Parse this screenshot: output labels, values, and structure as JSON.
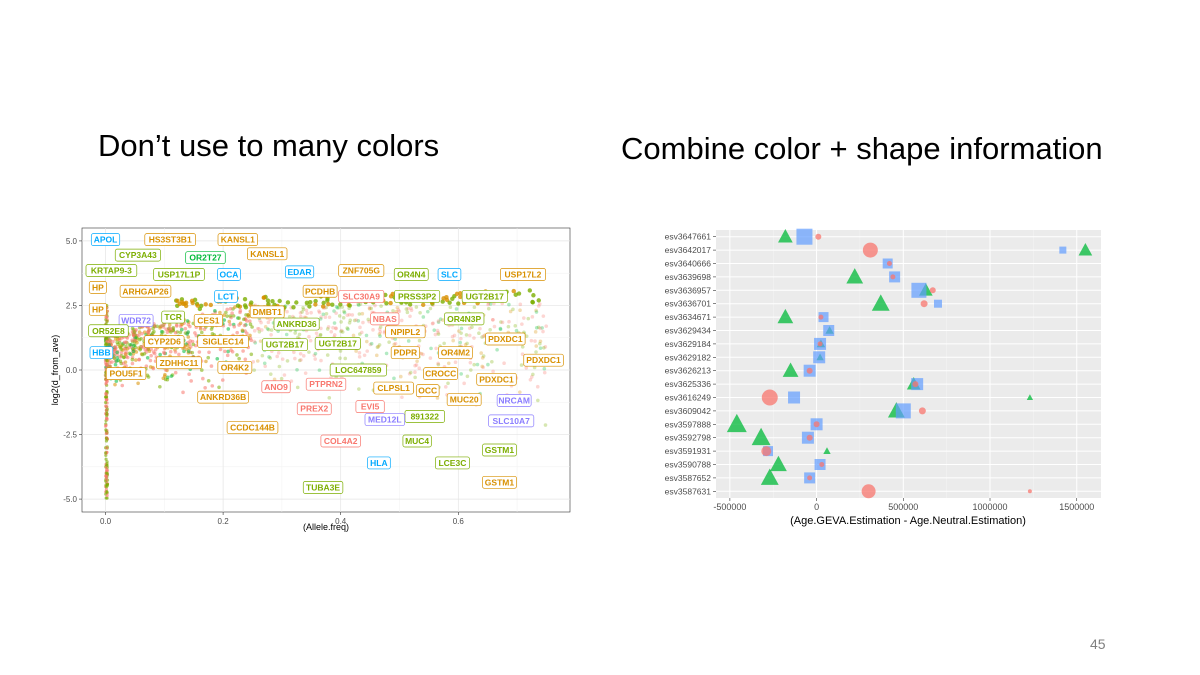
{
  "slide": {
    "left_title": "Don’t use to many colors",
    "right_title": "Combine color + shape information",
    "page_number": "45"
  },
  "colors": {
    "red": "#F8766D",
    "green": "#00BA38",
    "blue": "#619CFF",
    "olive": "#7CAE00",
    "orange": "#D89000",
    "sky": "#00A9FF",
    "purple": "#8A7CFF",
    "panel_bg": "#EBEBEB"
  },
  "chart_data": [
    {
      "type": "scatter",
      "title": "",
      "xlabel": "(Allele.freq)",
      "ylabel": "log2(d_from_ave)",
      "xlim": [
        -0.04,
        0.79
      ],
      "ylim": [
        -5.5,
        5.5
      ],
      "x_ticks": [
        "0.0",
        "0.2",
        "0.4",
        "0.6"
      ],
      "y_ticks": [
        "5.0",
        "2.5",
        "0.0",
        "-2.5",
        "-5.0"
      ],
      "background": "white with grey grid",
      "labels": [
        {
          "text": "APOL",
          "color": "sky",
          "x": 0.0,
          "y": 5.05
        },
        {
          "text": "HS3ST3B1",
          "color": "orange",
          "x": 0.11,
          "y": 5.05
        },
        {
          "text": "KANSL1",
          "color": "orange",
          "x": 0.225,
          "y": 5.05
        },
        {
          "text": "CYP3A43",
          "color": "olive",
          "x": 0.055,
          "y": 4.45
        },
        {
          "text": "KANSL1",
          "color": "orange",
          "x": 0.275,
          "y": 4.5
        },
        {
          "text": "OR2T27",
          "color": "green",
          "x": 0.17,
          "y": 4.35
        },
        {
          "text": "KRTAP9-3",
          "color": "olive",
          "x": 0.01,
          "y": 3.85
        },
        {
          "text": "USP17L1P",
          "color": "olive",
          "x": 0.125,
          "y": 3.7
        },
        {
          "text": "OCA",
          "color": "sky",
          "x": 0.21,
          "y": 3.7
        },
        {
          "text": "EDAR",
          "color": "sky",
          "x": 0.33,
          "y": 3.8
        },
        {
          "text": "ZNF705G",
          "color": "orange",
          "x": 0.435,
          "y": 3.85
        },
        {
          "text": "OR4N4",
          "color": "olive",
          "x": 0.52,
          "y": 3.7
        },
        {
          "text": "SLC",
          "color": "sky",
          "x": 0.585,
          "y": 3.7
        },
        {
          "text": "USP17L2",
          "color": "orange",
          "x": 0.71,
          "y": 3.7
        },
        {
          "text": "HP",
          "color": "orange",
          "x": -0.013,
          "y": 3.2
        },
        {
          "text": "ARHGAP26",
          "color": "orange",
          "x": 0.068,
          "y": 3.05
        },
        {
          "text": "LCT",
          "color": "sky",
          "x": 0.205,
          "y": 2.85
        },
        {
          "text": "PCDHB",
          "color": "orange",
          "x": 0.365,
          "y": 3.05
        },
        {
          "text": "SLC30A9",
          "color": "red",
          "x": 0.435,
          "y": 2.85
        },
        {
          "text": "PRSS3P2",
          "color": "olive",
          "x": 0.53,
          "y": 2.85
        },
        {
          "text": "UGT2B17",
          "color": "olive",
          "x": 0.645,
          "y": 2.85
        },
        {
          "text": "HP",
          "color": "orange",
          "x": -0.013,
          "y": 2.35
        },
        {
          "text": "DMBT1",
          "color": "orange",
          "x": 0.275,
          "y": 2.25
        },
        {
          "text": "TCR",
          "color": "olive",
          "x": 0.115,
          "y": 2.05
        },
        {
          "text": "WDR72",
          "color": "purple",
          "x": 0.052,
          "y": 1.92
        },
        {
          "text": "CES1",
          "color": "orange",
          "x": 0.175,
          "y": 1.92
        },
        {
          "text": "NBAS",
          "color": "red",
          "x": 0.475,
          "y": 1.98
        },
        {
          "text": "OR4N3P",
          "color": "olive",
          "x": 0.61,
          "y": 1.98
        },
        {
          "text": "ANKRD36",
          "color": "olive",
          "x": 0.325,
          "y": 1.78
        },
        {
          "text": "OR52E8",
          "color": "olive",
          "x": 0.005,
          "y": 1.52
        },
        {
          "text": "NPIPL2",
          "color": "orange",
          "x": 0.51,
          "y": 1.48
        },
        {
          "text": "CYP2D6",
          "color": "orange",
          "x": 0.1,
          "y": 1.1
        },
        {
          "text": "SIGLEC14",
          "color": "orange",
          "x": 0.2,
          "y": 1.1
        },
        {
          "text": "UGT2B17",
          "color": "olive",
          "x": 0.305,
          "y": 0.98
        },
        {
          "text": "UGT2B17",
          "color": "olive",
          "x": 0.395,
          "y": 1.03
        },
        {
          "text": "PDXDC1",
          "color": "orange",
          "x": 0.68,
          "y": 1.2
        },
        {
          "text": "HBB",
          "color": "sky",
          "x": -0.007,
          "y": 0.67
        },
        {
          "text": "PDPR",
          "color": "orange",
          "x": 0.51,
          "y": 0.67
        },
        {
          "text": "OR4M2",
          "color": "orange",
          "x": 0.595,
          "y": 0.67
        },
        {
          "text": "PDXDC1",
          "color": "orange",
          "x": 0.745,
          "y": 0.38
        },
        {
          "text": "ZDHHC11",
          "color": "orange",
          "x": 0.125,
          "y": 0.28
        },
        {
          "text": "OR4K2",
          "color": "orange",
          "x": 0.22,
          "y": 0.1
        },
        {
          "text": "LOC647859",
          "color": "olive",
          "x": 0.43,
          "y": 0.0
        },
        {
          "text": "CROCC",
          "color": "orange",
          "x": 0.57,
          "y": -0.14
        },
        {
          "text": "POU5F1",
          "color": "orange",
          "x": 0.035,
          "y": -0.14
        },
        {
          "text": "PDXDC1",
          "color": "orange",
          "x": 0.665,
          "y": -0.36
        },
        {
          "text": "PTPRN2",
          "color": "red",
          "x": 0.375,
          "y": -0.55
        },
        {
          "text": "ANO9",
          "color": "red",
          "x": 0.29,
          "y": -0.65
        },
        {
          "text": "CLPSL1",
          "color": "orange",
          "x": 0.49,
          "y": -0.7
        },
        {
          "text": "OCC",
          "color": "orange",
          "x": 0.548,
          "y": -0.8
        },
        {
          "text": "ANKRD36B",
          "color": "orange",
          "x": 0.2,
          "y": -1.05
        },
        {
          "text": "MUC20",
          "color": "orange",
          "x": 0.61,
          "y": -1.15
        },
        {
          "text": "NRCAM",
          "color": "purple",
          "x": 0.695,
          "y": -1.18
        },
        {
          "text": "EVI5",
          "color": "red",
          "x": 0.45,
          "y": -1.42
        },
        {
          "text": "PREX2",
          "color": "red",
          "x": 0.355,
          "y": -1.5
        },
        {
          "text": "891322",
          "color": "olive",
          "x": 0.543,
          "y": -1.8
        },
        {
          "text": "MED12L",
          "color": "purple",
          "x": 0.475,
          "y": -1.92
        },
        {
          "text": "SLC10A7",
          "color": "purple",
          "x": 0.69,
          "y": -1.97
        },
        {
          "text": "CCDC144B",
          "color": "orange",
          "x": 0.25,
          "y": -2.23
        },
        {
          "text": "COL4A2",
          "color": "red",
          "x": 0.4,
          "y": -2.75
        },
        {
          "text": "MUC4",
          "color": "olive",
          "x": 0.53,
          "y": -2.75
        },
        {
          "text": "GSTM1",
          "color": "olive",
          "x": 0.67,
          "y": -3.1
        },
        {
          "text": "HLA",
          "color": "sky",
          "x": 0.465,
          "y": -3.6
        },
        {
          "text": "LCE3C",
          "color": "olive",
          "x": 0.59,
          "y": -3.6
        },
        {
          "text": "GSTM1",
          "color": "orange",
          "x": 0.67,
          "y": -4.35
        },
        {
          "text": "TUBA3E",
          "color": "olive",
          "x": 0.37,
          "y": -4.55
        }
      ]
    },
    {
      "type": "scatter",
      "title": "",
      "xlabel": "(Age.GEVA.Estimation - Age.Neutral.Estimation)",
      "ylabel": "",
      "xlim": [
        -580000,
        1640000
      ],
      "x_ticks": [
        "-500000",
        "0",
        "500000",
        "1000000",
        "1500000"
      ],
      "categories": [
        "esv3647661",
        "esv3642017",
        "esv3640666",
        "esv3639698",
        "esv3636957",
        "esv3636701",
        "esv3634671",
        "esv3629434",
        "esv3629184",
        "esv3629182",
        "esv3626213",
        "esv3625336",
        "esv3616249",
        "esv3609042",
        "esv3597888",
        "esv3592798",
        "esv3591931",
        "esv3590788",
        "esv3587652",
        "esv3587631"
      ],
      "shape_color_legend": "circle=red, triangle=green, square=blue; marker size varies",
      "points": [
        {
          "row": 0,
          "x": -180000,
          "shape": "triangle",
          "size": 14
        },
        {
          "row": 0,
          "x": -70000,
          "shape": "square",
          "size": 16
        },
        {
          "row": 0,
          "x": 10000,
          "shape": "circle",
          "size": 6
        },
        {
          "row": 1,
          "x": 310000,
          "shape": "circle",
          "size": 15
        },
        {
          "row": 1,
          "x": 1420000,
          "shape": "square",
          "size": 7
        },
        {
          "row": 1,
          "x": 1550000,
          "shape": "triangle",
          "size": 13
        },
        {
          "row": 2,
          "x": 410000,
          "shape": "square",
          "size": 10
        },
        {
          "row": 2,
          "x": 420000,
          "shape": "circle",
          "size": 5
        },
        {
          "row": 3,
          "x": 220000,
          "shape": "triangle",
          "size": 16
        },
        {
          "row": 3,
          "x": 450000,
          "shape": "square",
          "size": 11
        },
        {
          "row": 3,
          "x": 440000,
          "shape": "circle",
          "size": 5
        },
        {
          "row": 4,
          "x": 590000,
          "shape": "square",
          "size": 15
        },
        {
          "row": 4,
          "x": 630000,
          "shape": "triangle",
          "size": 13
        },
        {
          "row": 4,
          "x": 670000,
          "shape": "circle",
          "size": 6
        },
        {
          "row": 5,
          "x": 370000,
          "shape": "triangle",
          "size": 17
        },
        {
          "row": 5,
          "x": 620000,
          "shape": "circle",
          "size": 7
        },
        {
          "row": 5,
          "x": 700000,
          "shape": "square",
          "size": 8
        },
        {
          "row": 6,
          "x": -180000,
          "shape": "triangle",
          "size": 15
        },
        {
          "row": 6,
          "x": 40000,
          "shape": "square",
          "size": 10
        },
        {
          "row": 6,
          "x": 25000,
          "shape": "circle",
          "size": 5
        },
        {
          "row": 7,
          "x": 70000,
          "shape": "square",
          "size": 11
        },
        {
          "row": 7,
          "x": 75000,
          "shape": "triangle",
          "size": 8
        },
        {
          "row": 8,
          "x": 20000,
          "shape": "square",
          "size": 12
        },
        {
          "row": 8,
          "x": 25000,
          "shape": "triangle",
          "size": 8
        },
        {
          "row": 8,
          "x": 20000,
          "shape": "circle",
          "size": 5
        },
        {
          "row": 9,
          "x": 15000,
          "shape": "square",
          "size": 12
        },
        {
          "row": 9,
          "x": 20000,
          "shape": "triangle",
          "size": 7
        },
        {
          "row": 10,
          "x": -150000,
          "shape": "triangle",
          "size": 15
        },
        {
          "row": 10,
          "x": -40000,
          "shape": "square",
          "size": 12
        },
        {
          "row": 10,
          "x": -40000,
          "shape": "circle",
          "size": 6
        },
        {
          "row": 11,
          "x": 560000,
          "shape": "triangle",
          "size": 13
        },
        {
          "row": 11,
          "x": 580000,
          "shape": "square",
          "size": 12
        },
        {
          "row": 11,
          "x": 570000,
          "shape": "circle",
          "size": 6
        },
        {
          "row": 12,
          "x": -270000,
          "shape": "circle",
          "size": 16
        },
        {
          "row": 12,
          "x": -130000,
          "shape": "square",
          "size": 12
        },
        {
          "row": 12,
          "x": 1230000,
          "shape": "triangle",
          "size": 6
        },
        {
          "row": 13,
          "x": 460000,
          "shape": "triangle",
          "size": 16
        },
        {
          "row": 13,
          "x": 500000,
          "shape": "square",
          "size": 15
        },
        {
          "row": 13,
          "x": 610000,
          "shape": "circle",
          "size": 7
        },
        {
          "row": 14,
          "x": -460000,
          "shape": "triangle",
          "size": 19
        },
        {
          "row": 14,
          "x": 0,
          "shape": "square",
          "size": 12
        },
        {
          "row": 14,
          "x": 0,
          "shape": "circle",
          "size": 6
        },
        {
          "row": 15,
          "x": -320000,
          "shape": "triangle",
          "size": 18
        },
        {
          "row": 15,
          "x": -50000,
          "shape": "square",
          "size": 12
        },
        {
          "row": 15,
          "x": -40000,
          "shape": "circle",
          "size": 6
        },
        {
          "row": 16,
          "x": -290000,
          "shape": "circle",
          "size": 10
        },
        {
          "row": 16,
          "x": -280000,
          "shape": "square",
          "size": 10
        },
        {
          "row": 16,
          "x": 60000,
          "shape": "triangle",
          "size": 7
        },
        {
          "row": 17,
          "x": -220000,
          "shape": "triangle",
          "size": 16
        },
        {
          "row": 17,
          "x": 20000,
          "shape": "square",
          "size": 11
        },
        {
          "row": 17,
          "x": 30000,
          "shape": "circle",
          "size": 5
        },
        {
          "row": 18,
          "x": -270000,
          "shape": "triangle",
          "size": 17
        },
        {
          "row": 18,
          "x": -40000,
          "shape": "square",
          "size": 11
        },
        {
          "row": 18,
          "x": -40000,
          "shape": "circle",
          "size": 5
        },
        {
          "row": 19,
          "x": 300000,
          "shape": "circle",
          "size": 14
        },
        {
          "row": 19,
          "x": 1230000,
          "shape": "circle",
          "size": 4
        }
      ]
    }
  ]
}
